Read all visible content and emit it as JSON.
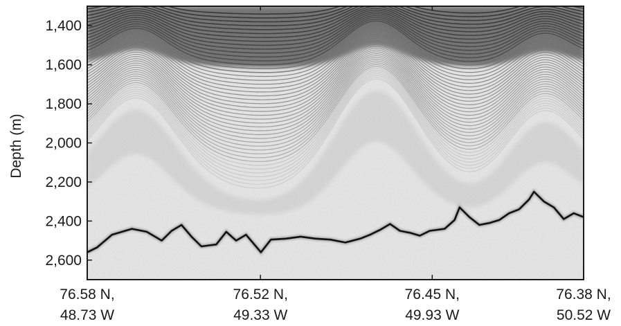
{
  "chart_data": {
    "type": "radar-echogram",
    "ylabel": "Depth (m)",
    "xlabel": "",
    "ylim": [
      2700,
      1300
    ],
    "y_ticks": [
      1400,
      1600,
      1800,
      2000,
      2200,
      2400,
      2600
    ],
    "y_tick_labels": [
      "1,400",
      "1,600",
      "1,800",
      "2,000",
      "2,200",
      "2,400",
      "2,600"
    ],
    "x_ticks": [
      {
        "lat": "76.58 N,",
        "lon": "48.73 W"
      },
      {
        "lat": "76.52 N,",
        "lon": "49.33 W"
      },
      {
        "lat": "76.45 N,",
        "lon": "49.93 W"
      },
      {
        "lat": "76.38 N,",
        "lon": "50.52 W"
      }
    ],
    "x_range": [
      0,
      1
    ],
    "x_tick_positions": [
      0,
      0.349,
      0.695,
      1.0
    ],
    "surface_depth": 1300,
    "bed_profile": {
      "x": [
        0,
        0.02,
        0.05,
        0.09,
        0.12,
        0.15,
        0.17,
        0.19,
        0.21,
        0.23,
        0.26,
        0.28,
        0.3,
        0.32,
        0.35,
        0.37,
        0.4,
        0.43,
        0.46,
        0.49,
        0.52,
        0.55,
        0.57,
        0.59,
        0.61,
        0.63,
        0.65,
        0.67,
        0.69,
        0.72,
        0.74,
        0.75,
        0.77,
        0.79,
        0.81,
        0.83,
        0.85,
        0.87,
        0.89,
        0.9,
        0.92,
        0.94,
        0.96,
        0.98,
        1.0
      ],
      "depth": [
        2560,
        2535,
        2470,
        2440,
        2455,
        2500,
        2450,
        2420,
        2480,
        2530,
        2520,
        2455,
        2500,
        2470,
        2560,
        2495,
        2490,
        2480,
        2490,
        2495,
        2510,
        2490,
        2470,
        2445,
        2415,
        2450,
        2460,
        2475,
        2450,
        2440,
        2395,
        2330,
        2380,
        2420,
        2410,
        2395,
        2360,
        2340,
        2290,
        2250,
        2300,
        2330,
        2390,
        2360,
        2380
      ]
    },
    "grid": false,
    "legend": "none"
  }
}
